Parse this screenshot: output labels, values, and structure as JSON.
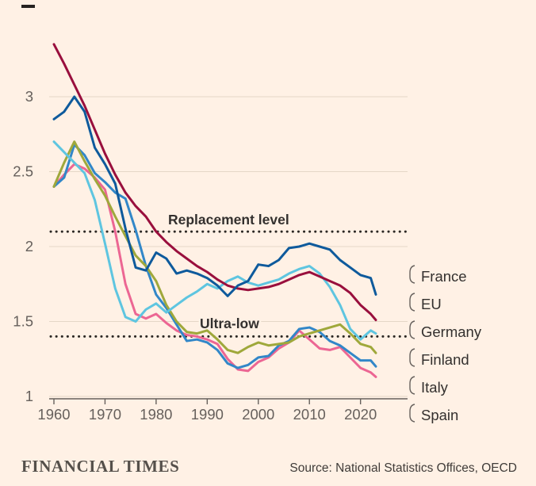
{
  "chart": {
    "background": "#FFF1E5",
    "text_color": "#33302E",
    "muted_color": "#66605C",
    "grid_color": "#E5D7C7",
    "axis_color": "#66605C",
    "reference_line_color": "#2B2723"
  },
  "chart_data": {
    "type": "line",
    "x_range": [
      1960,
      2023
    ],
    "y_range": [
      1,
      3.45
    ],
    "x_ticks": [
      1960,
      1970,
      1980,
      1990,
      2000,
      2010,
      2020
    ],
    "y_ticks": [
      1,
      1.5,
      2,
      2.5,
      3
    ],
    "grid": "horizontal",
    "legend_position": "right-edge-labels",
    "reference_lines": [
      {
        "value": 2.1,
        "label": "Replacement level",
        "style": "dotted"
      },
      {
        "value": 1.4,
        "label": "Ultra-low",
        "style": "dotted"
      }
    ],
    "years": [
      1960,
      1962,
      1964,
      1966,
      1968,
      1970,
      1972,
      1974,
      1976,
      1978,
      1980,
      1982,
      1984,
      1986,
      1988,
      1990,
      1992,
      1994,
      1996,
      1998,
      2000,
      2002,
      2004,
      2006,
      2008,
      2010,
      2012,
      2014,
      2016,
      2018,
      2020,
      2022,
      2023
    ],
    "series": [
      {
        "name": "France",
        "color": "#0E5A9C",
        "values": [
          2.85,
          2.9,
          3.0,
          2.9,
          2.66,
          2.55,
          2.42,
          2.12,
          1.86,
          1.84,
          1.96,
          1.92,
          1.82,
          1.84,
          1.82,
          1.79,
          1.74,
          1.67,
          1.74,
          1.77,
          1.88,
          1.87,
          1.91,
          1.99,
          2.0,
          2.02,
          2.0,
          1.98,
          1.91,
          1.86,
          1.81,
          1.79,
          1.68
        ]
      },
      {
        "name": "EU",
        "color": "#990F3D",
        "values": [
          3.35,
          3.22,
          3.08,
          2.94,
          2.78,
          2.62,
          2.48,
          2.36,
          2.27,
          2.2,
          2.1,
          2.03,
          1.97,
          1.92,
          1.87,
          1.83,
          1.78,
          1.74,
          1.72,
          1.71,
          1.72,
          1.73,
          1.75,
          1.78,
          1.81,
          1.83,
          1.8,
          1.77,
          1.74,
          1.69,
          1.61,
          1.55,
          1.51
        ]
      },
      {
        "name": "Germany",
        "color": "#5EC5E0",
        "values": [
          2.7,
          2.63,
          2.56,
          2.49,
          2.31,
          2.02,
          1.72,
          1.53,
          1.5,
          1.58,
          1.62,
          1.56,
          1.61,
          1.66,
          1.7,
          1.75,
          1.72,
          1.77,
          1.8,
          1.76,
          1.74,
          1.76,
          1.78,
          1.82,
          1.85,
          1.87,
          1.82,
          1.73,
          1.61,
          1.45,
          1.38,
          1.44,
          1.42
        ]
      },
      {
        "name": "Finland",
        "color": "#9FA83B",
        "values": [
          2.4,
          2.56,
          2.7,
          2.57,
          2.45,
          2.34,
          2.2,
          2.07,
          1.94,
          1.87,
          1.77,
          1.61,
          1.5,
          1.43,
          1.42,
          1.44,
          1.38,
          1.31,
          1.29,
          1.33,
          1.36,
          1.34,
          1.35,
          1.36,
          1.4,
          1.42,
          1.44,
          1.46,
          1.48,
          1.42,
          1.35,
          1.33,
          1.29
        ]
      },
      {
        "name": "Italy",
        "color": "#3287C8",
        "values": [
          2.4,
          2.46,
          2.68,
          2.61,
          2.49,
          2.43,
          2.36,
          2.32,
          2.11,
          1.87,
          1.68,
          1.59,
          1.48,
          1.37,
          1.38,
          1.36,
          1.31,
          1.22,
          1.19,
          1.21,
          1.26,
          1.27,
          1.34,
          1.37,
          1.45,
          1.46,
          1.43,
          1.37,
          1.34,
          1.29,
          1.24,
          1.24,
          1.2
        ]
      },
      {
        "name": "Spain",
        "color": "#EC6693",
        "values": [
          2.4,
          2.48,
          2.55,
          2.52,
          2.46,
          2.38,
          2.1,
          1.75,
          1.55,
          1.52,
          1.55,
          1.49,
          1.44,
          1.41,
          1.4,
          1.38,
          1.35,
          1.25,
          1.18,
          1.17,
          1.23,
          1.26,
          1.32,
          1.36,
          1.44,
          1.38,
          1.32,
          1.31,
          1.33,
          1.26,
          1.19,
          1.16,
          1.13
        ]
      }
    ]
  },
  "footer": {
    "brand": "FINANCIAL TIMES",
    "source": "Source: National Statistics Offices, OECD"
  }
}
